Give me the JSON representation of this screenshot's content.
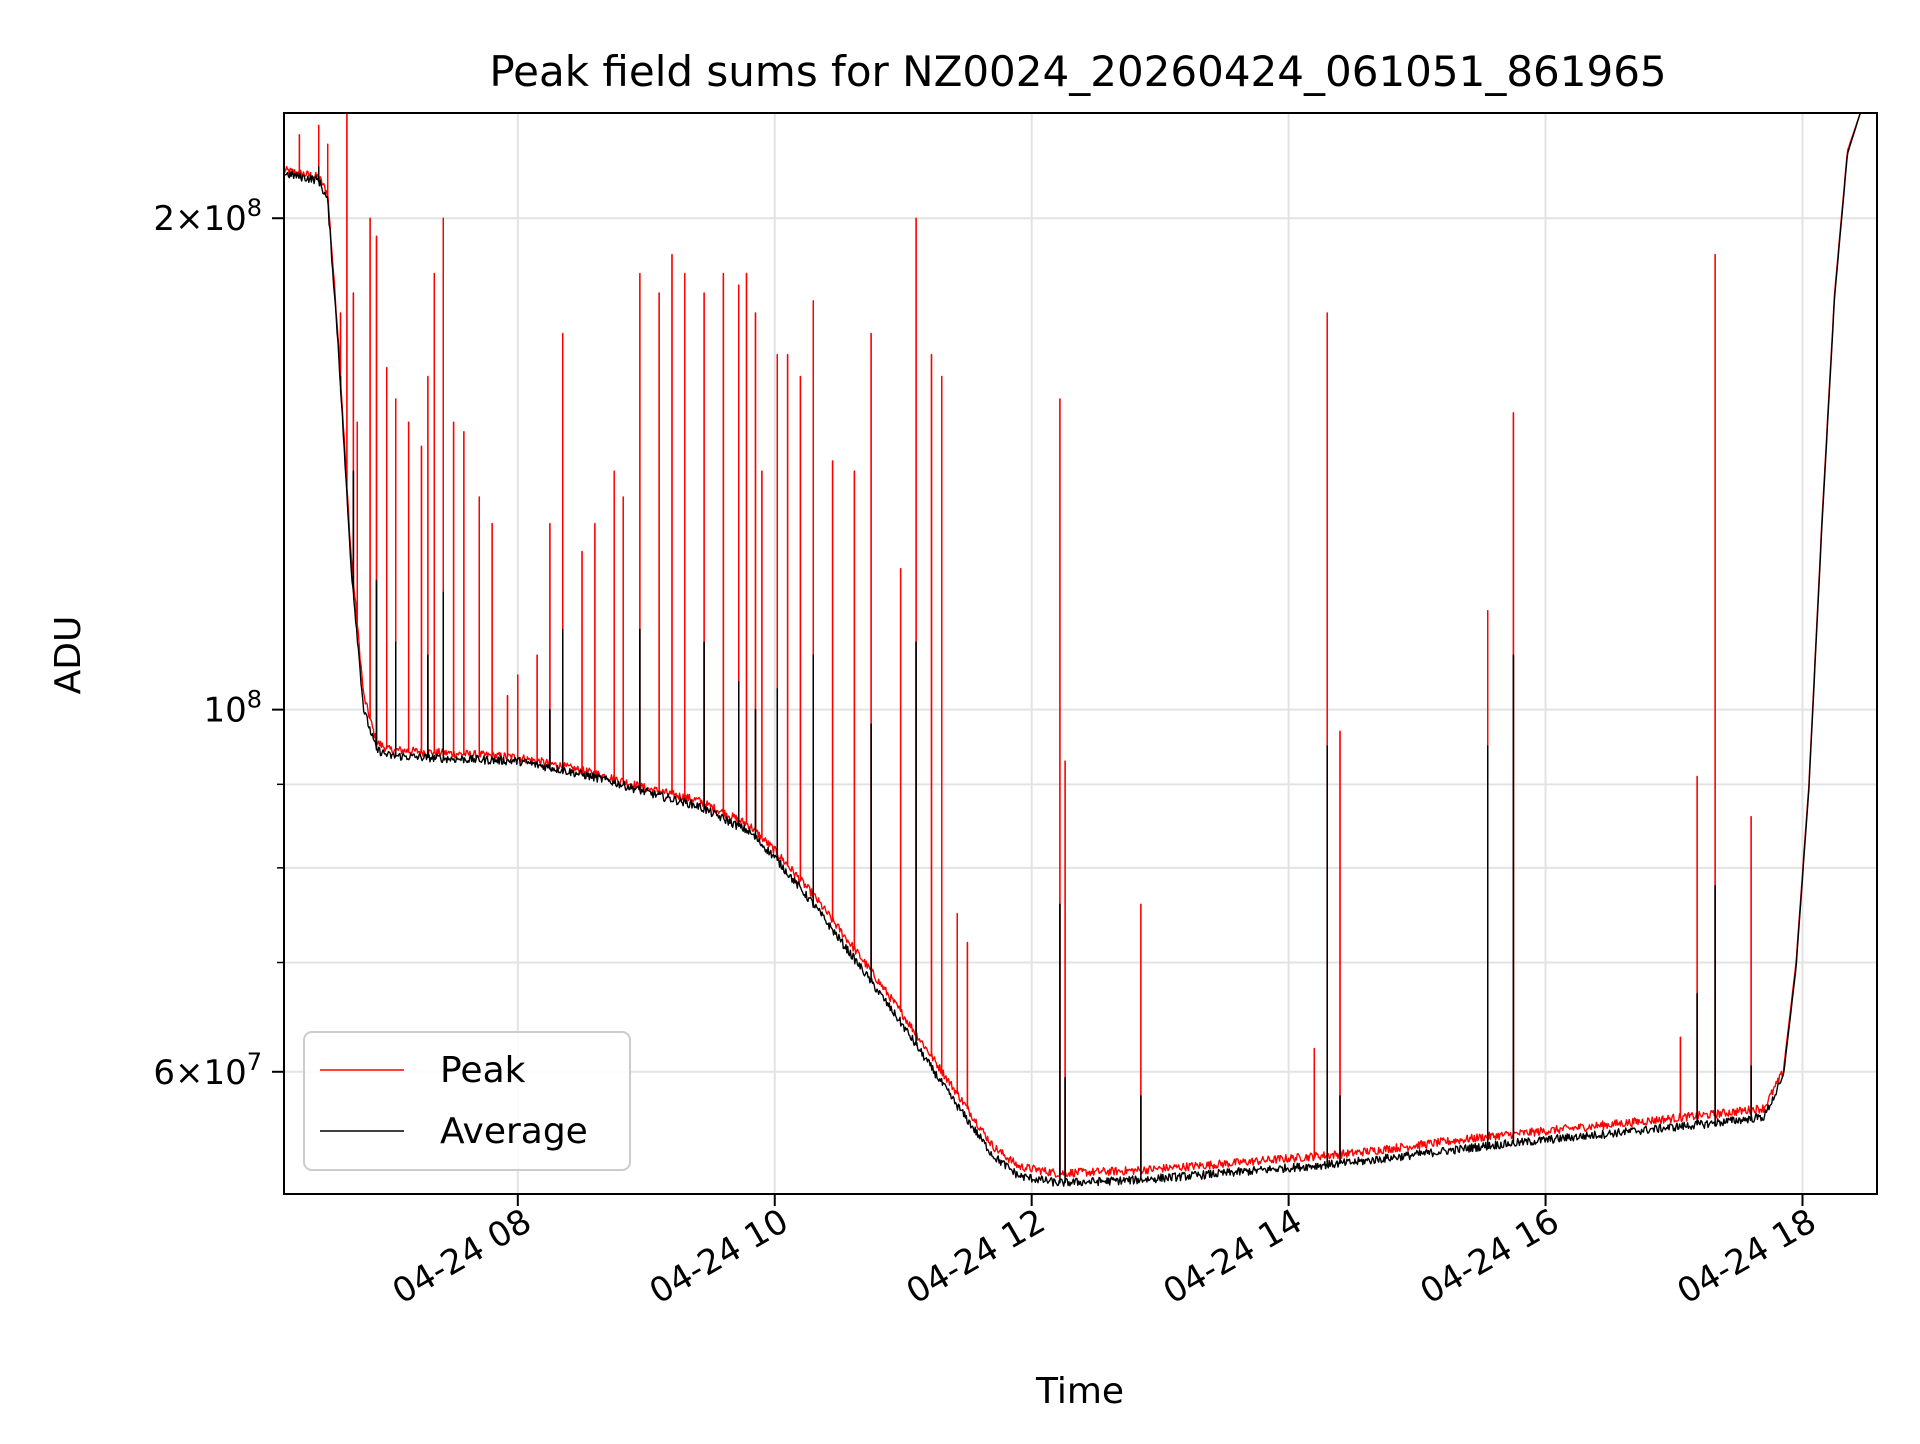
{
  "chart_data": {
    "type": "line",
    "title": "Peak field sums for NZ0024_20260424_061051_861965",
    "xlabel": "Time",
    "ylabel": "ADU",
    "yscale": "log",
    "xlim": [
      6.18,
      18.58
    ],
    "ylim": [
      50500000,
      232000000
    ],
    "grid": true,
    "legend_position": "lower-left",
    "x_ticks": [
      {
        "value": 8,
        "label": "04-24 08"
      },
      {
        "value": 10,
        "label": "04-24 10"
      },
      {
        "value": 12,
        "label": "04-24 12"
      },
      {
        "value": 14,
        "label": "04-24 14"
      },
      {
        "value": 16,
        "label": "04-24 16"
      },
      {
        "value": 18,
        "label": "04-24 18"
      }
    ],
    "y_major_ticks": [
      {
        "value": 200000000,
        "mantissa": "2",
        "exponent": "8"
      },
      {
        "value": 100000000,
        "mantissa": "",
        "exponent": "8"
      },
      {
        "value": 60000000,
        "mantissa": "6",
        "exponent": "7"
      }
    ],
    "y_minor_ticks": [
      70000000,
      80000000,
      90000000
    ],
    "series": [
      {
        "name": "Peak",
        "color": "#ff0000",
        "baseline": [
          [
            6.18,
            214000000
          ],
          [
            6.45,
            212000000
          ],
          [
            6.52,
            207000000
          ],
          [
            6.6,
            170000000
          ],
          [
            6.7,
            125000000
          ],
          [
            6.8,
            102000000
          ],
          [
            6.9,
            95500000
          ],
          [
            7.0,
            94500000
          ],
          [
            7.5,
            94000000
          ],
          [
            8.0,
            93500000
          ],
          [
            8.3,
            92500000
          ],
          [
            8.7,
            91000000
          ],
          [
            9.0,
            89500000
          ],
          [
            9.4,
            88000000
          ],
          [
            9.8,
            85000000
          ],
          [
            10.0,
            82000000
          ],
          [
            10.3,
            77000000
          ],
          [
            10.7,
            70000000
          ],
          [
            11.0,
            65000000
          ],
          [
            11.4,
            58500000
          ],
          [
            11.7,
            54000000
          ],
          [
            11.9,
            52500000
          ],
          [
            12.2,
            52000000
          ],
          [
            12.8,
            52200000
          ],
          [
            13.5,
            52700000
          ],
          [
            14.5,
            53500000
          ],
          [
            15.5,
            54700000
          ],
          [
            16.5,
            55700000
          ],
          [
            17.3,
            56500000
          ],
          [
            17.7,
            57000000
          ],
          [
            17.85,
            60000000
          ],
          [
            17.95,
            70000000
          ],
          [
            18.05,
            90000000
          ],
          [
            18.15,
            130000000
          ],
          [
            18.25,
            180000000
          ],
          [
            18.35,
            220000000
          ],
          [
            18.45,
            232000000
          ],
          [
            18.58,
            232000000
          ]
        ],
        "spikes": [
          [
            6.3,
            225000000
          ],
          [
            6.45,
            228000000
          ],
          [
            6.52,
            222000000
          ],
          [
            6.62,
            175000000
          ],
          [
            6.67,
            233000000
          ],
          [
            6.72,
            180000000
          ],
          [
            6.75,
            150000000
          ],
          [
            6.85,
            200000000
          ],
          [
            6.9,
            195000000
          ],
          [
            6.98,
            162000000
          ],
          [
            7.05,
            155000000
          ],
          [
            7.15,
            150000000
          ],
          [
            7.25,
            145000000
          ],
          [
            7.3,
            160000000
          ],
          [
            7.35,
            185000000
          ],
          [
            7.42,
            200000000
          ],
          [
            7.5,
            150000000
          ],
          [
            7.58,
            148000000
          ],
          [
            7.7,
            135000000
          ],
          [
            7.8,
            130000000
          ],
          [
            7.92,
            102000000
          ],
          [
            8.0,
            105000000
          ],
          [
            8.15,
            108000000
          ],
          [
            8.25,
            130000000
          ],
          [
            8.35,
            170000000
          ],
          [
            8.5,
            125000000
          ],
          [
            8.6,
            130000000
          ],
          [
            8.75,
            140000000
          ],
          [
            8.82,
            135000000
          ],
          [
            8.95,
            185000000
          ],
          [
            9.1,
            180000000
          ],
          [
            9.2,
            190000000
          ],
          [
            9.3,
            185000000
          ],
          [
            9.45,
            180000000
          ],
          [
            9.6,
            185000000
          ],
          [
            9.72,
            182000000
          ],
          [
            9.78,
            185000000
          ],
          [
            9.85,
            175000000
          ],
          [
            9.9,
            140000000
          ],
          [
            10.02,
            165000000
          ],
          [
            10.1,
            165000000
          ],
          [
            10.2,
            160000000
          ],
          [
            10.3,
            178000000
          ],
          [
            10.45,
            142000000
          ],
          [
            10.62,
            140000000
          ],
          [
            10.75,
            170000000
          ],
          [
            10.98,
            122000000
          ],
          [
            11.1,
            200000000
          ],
          [
            11.22,
            165000000
          ],
          [
            11.3,
            160000000
          ],
          [
            11.42,
            75000000
          ],
          [
            11.5,
            72000000
          ],
          [
            12.22,
            155000000
          ],
          [
            12.26,
            93000000
          ],
          [
            12.85,
            76000000
          ],
          [
            14.2,
            62000000
          ],
          [
            14.3,
            175000000
          ],
          [
            14.4,
            97000000
          ],
          [
            15.55,
            115000000
          ],
          [
            15.75,
            152000000
          ],
          [
            17.05,
            63000000
          ],
          [
            17.18,
            91000000
          ],
          [
            17.32,
            190000000
          ],
          [
            17.6,
            86000000
          ]
        ]
      },
      {
        "name": "Average",
        "color": "#000000",
        "baseline": [
          [
            6.18,
            213000000
          ],
          [
            6.45,
            211000000
          ],
          [
            6.52,
            205000000
          ],
          [
            6.6,
            168000000
          ],
          [
            6.7,
            123000000
          ],
          [
            6.8,
            100000000
          ],
          [
            6.9,
            94500000
          ],
          [
            7.0,
            93700000
          ],
          [
            7.5,
            93300000
          ],
          [
            8.0,
            93000000
          ],
          [
            8.3,
            92000000
          ],
          [
            8.7,
            90500000
          ],
          [
            9.0,
            89000000
          ],
          [
            9.4,
            87300000
          ],
          [
            9.8,
            84200000
          ],
          [
            10.0,
            81200000
          ],
          [
            10.3,
            76000000
          ],
          [
            10.7,
            69000000
          ],
          [
            11.0,
            64000000
          ],
          [
            11.4,
            57500000
          ],
          [
            11.7,
            53300000
          ],
          [
            11.9,
            51800000
          ],
          [
            12.2,
            51300000
          ],
          [
            12.8,
            51500000
          ],
          [
            13.5,
            52000000
          ],
          [
            14.5,
            52800000
          ],
          [
            15.5,
            54000000
          ],
          [
            16.5,
            55000000
          ],
          [
            17.3,
            55800000
          ],
          [
            17.7,
            56300000
          ],
          [
            17.85,
            59500000
          ],
          [
            17.95,
            69500000
          ],
          [
            18.05,
            89500000
          ],
          [
            18.15,
            129000000
          ],
          [
            18.25,
            179000000
          ],
          [
            18.35,
            219000000
          ],
          [
            18.45,
            232000000
          ],
          [
            18.58,
            232000000
          ]
        ],
        "spikes": [
          [
            6.45,
            215000000
          ],
          [
            6.62,
            160000000
          ],
          [
            6.72,
            140000000
          ],
          [
            6.9,
            120000000
          ],
          [
            7.05,
            110000000
          ],
          [
            7.3,
            108000000
          ],
          [
            7.42,
            118000000
          ],
          [
            8.25,
            100000000
          ],
          [
            8.35,
            112000000
          ],
          [
            8.95,
            112000000
          ],
          [
            9.45,
            110000000
          ],
          [
            9.72,
            104000000
          ],
          [
            9.85,
            100000000
          ],
          [
            10.02,
            103000000
          ],
          [
            10.3,
            108000000
          ],
          [
            10.75,
            98000000
          ],
          [
            11.1,
            110000000
          ],
          [
            12.22,
            76000000
          ],
          [
            12.26,
            59500000
          ],
          [
            12.85,
            58000000
          ],
          [
            14.3,
            95000000
          ],
          [
            14.4,
            58000000
          ],
          [
            15.55,
            95000000
          ],
          [
            15.75,
            108000000
          ],
          [
            17.18,
            67000000
          ],
          [
            17.32,
            78000000
          ],
          [
            17.6,
            60500000
          ]
        ]
      }
    ]
  }
}
